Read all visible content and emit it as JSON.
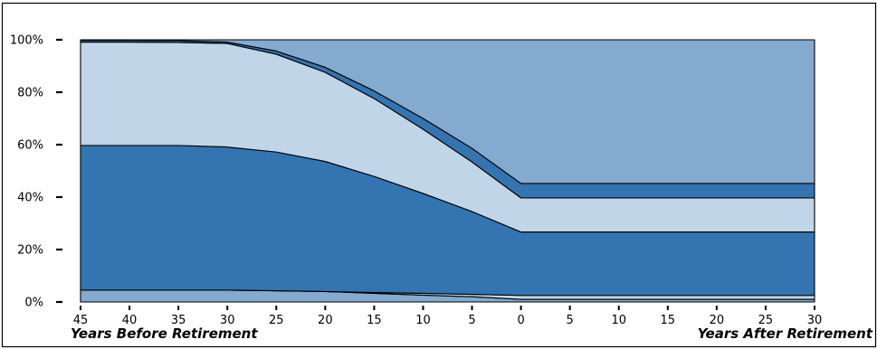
{
  "chart_data": {
    "type": "area",
    "stacked": true,
    "categories": [
      "45",
      "40",
      "35",
      "30",
      "25",
      "20",
      "15",
      "10",
      "5",
      "0",
      "5",
      "10",
      "15",
      "20",
      "25",
      "30"
    ],
    "xlabel_before": "Years Before Retirement",
    "xlabel_after": "Years After Retirement",
    "y_ticks": [
      0,
      20,
      40,
      60,
      80,
      100
    ],
    "y_tick_labels": [
      "0%",
      "20%",
      "40%",
      "60%",
      "80%",
      "100%"
    ],
    "ylim": [
      0,
      100
    ],
    "grid": false,
    "series": [
      {
        "color": "#84aacf",
        "values": [
          4.5,
          4.5,
          4.5,
          4.5,
          4.3,
          4.0,
          3.3,
          2.6,
          2.0,
          1.0,
          1.0,
          1.0,
          1.0,
          1.0,
          1.0,
          1.0
        ]
      },
      {
        "color": "#c0d5e8",
        "values": [
          0,
          0,
          0,
          0,
          0,
          0,
          0.3,
          0.7,
          0.9,
          1.5,
          1.5,
          1.5,
          1.5,
          1.5,
          1.5,
          1.5
        ]
      },
      {
        "color": "#3474b0",
        "values": [
          55.2,
          55.2,
          55.2,
          54.6,
          52.9,
          49.6,
          44.3,
          38.1,
          31.6,
          24.2,
          24.2,
          24.2,
          24.2,
          24.2,
          24.2,
          24.2
        ]
      },
      {
        "color": "#c0d5e8",
        "values": [
          39.4,
          39.4,
          39.3,
          39.5,
          37.3,
          34.0,
          29.7,
          24.5,
          18.9,
          13.0,
          13.0,
          13.0,
          13.0,
          13.0,
          13.0,
          13.0
        ]
      },
      {
        "color": "#3474b0",
        "values": [
          0.7,
          0.7,
          0.7,
          0.5,
          1.2,
          1.9,
          2.9,
          4.1,
          5.2,
          5.5,
          5.5,
          5.5,
          5.5,
          5.5,
          5.5,
          5.5
        ]
      },
      {
        "color": "#84aacf",
        "values": [
          0.2,
          0.2,
          0.3,
          0.9,
          4.3,
          10.5,
          19.5,
          30.0,
          41.4,
          54.8,
          54.8,
          54.8,
          54.8,
          54.8,
          54.8,
          54.8
        ]
      }
    ]
  }
}
